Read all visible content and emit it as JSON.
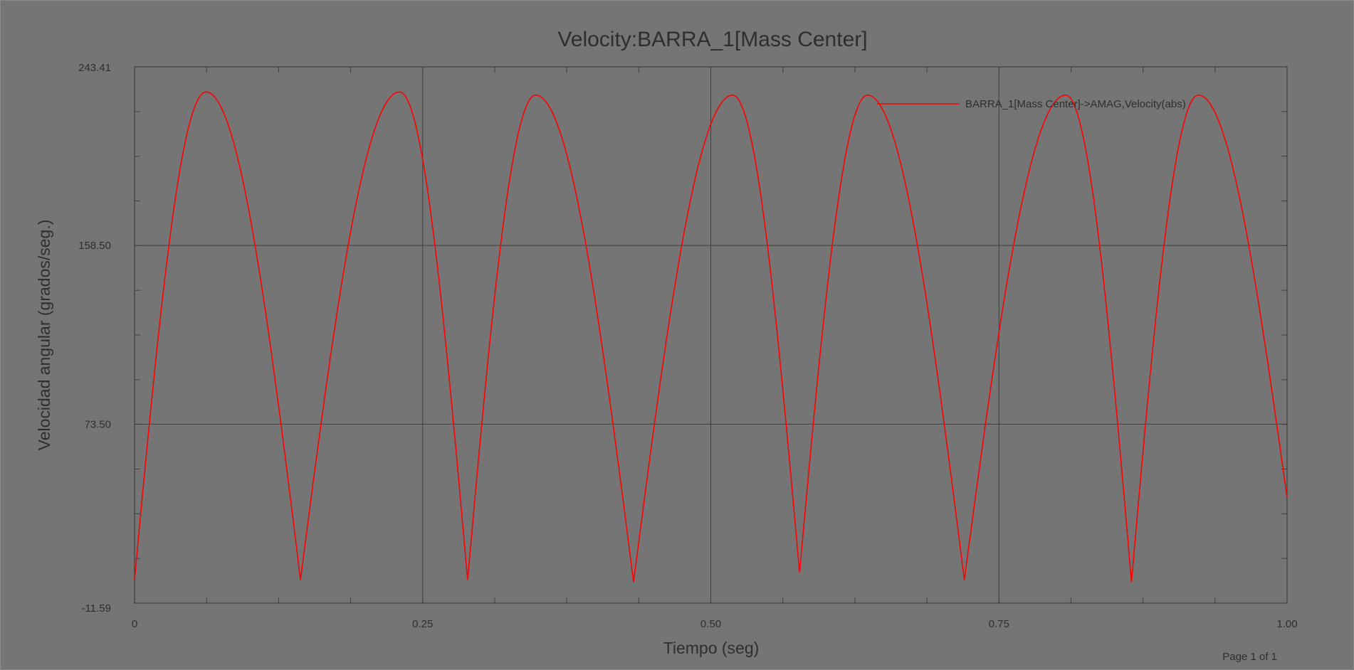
{
  "page_footer": "Page 1 of 1",
  "colors": {
    "background": "#757575",
    "series": "#ff0000",
    "grid": "#3f3f3f",
    "text": "#2e2e2e"
  },
  "chart_data": {
    "type": "line",
    "title": "Velocity:BARRA_1[Mass Center]",
    "xlabel": "Tiempo (seg)",
    "ylabel": "Velocidad angular (grados/seg.)",
    "xlim": [
      0,
      1.0
    ],
    "ylim": [
      -11.59,
      243.41
    ],
    "x_ticks": [
      0,
      0.25,
      0.5,
      0.75,
      1.0
    ],
    "x_tick_labels": [
      "0",
      "0.25",
      "0.50",
      "0.75",
      "1.00"
    ],
    "y_ticks": [
      -11.59,
      73.5,
      158.5,
      243.41
    ],
    "y_tick_labels": [
      "-11.59",
      "73.50",
      "158.50",
      "243.41"
    ],
    "grid": true,
    "legend_position": "top-right",
    "series": [
      {
        "name": "BARRA_1[Mass Center]->AMAG,Velocity(abs)",
        "x": [
          0,
          0.062,
          0.144,
          0.23,
          0.289,
          0.348,
          0.433,
          0.519,
          0.577,
          0.636,
          0.72,
          0.808,
          0.865,
          0.923,
          1.0
        ],
        "y": [
          -0.5,
          231.5,
          -0.5,
          231.5,
          -0.5,
          230.0,
          -1.5,
          230.0,
          3.0,
          230.0,
          -0.5,
          230.0,
          -1.5,
          230.0,
          38.5
        ]
      }
    ]
  }
}
